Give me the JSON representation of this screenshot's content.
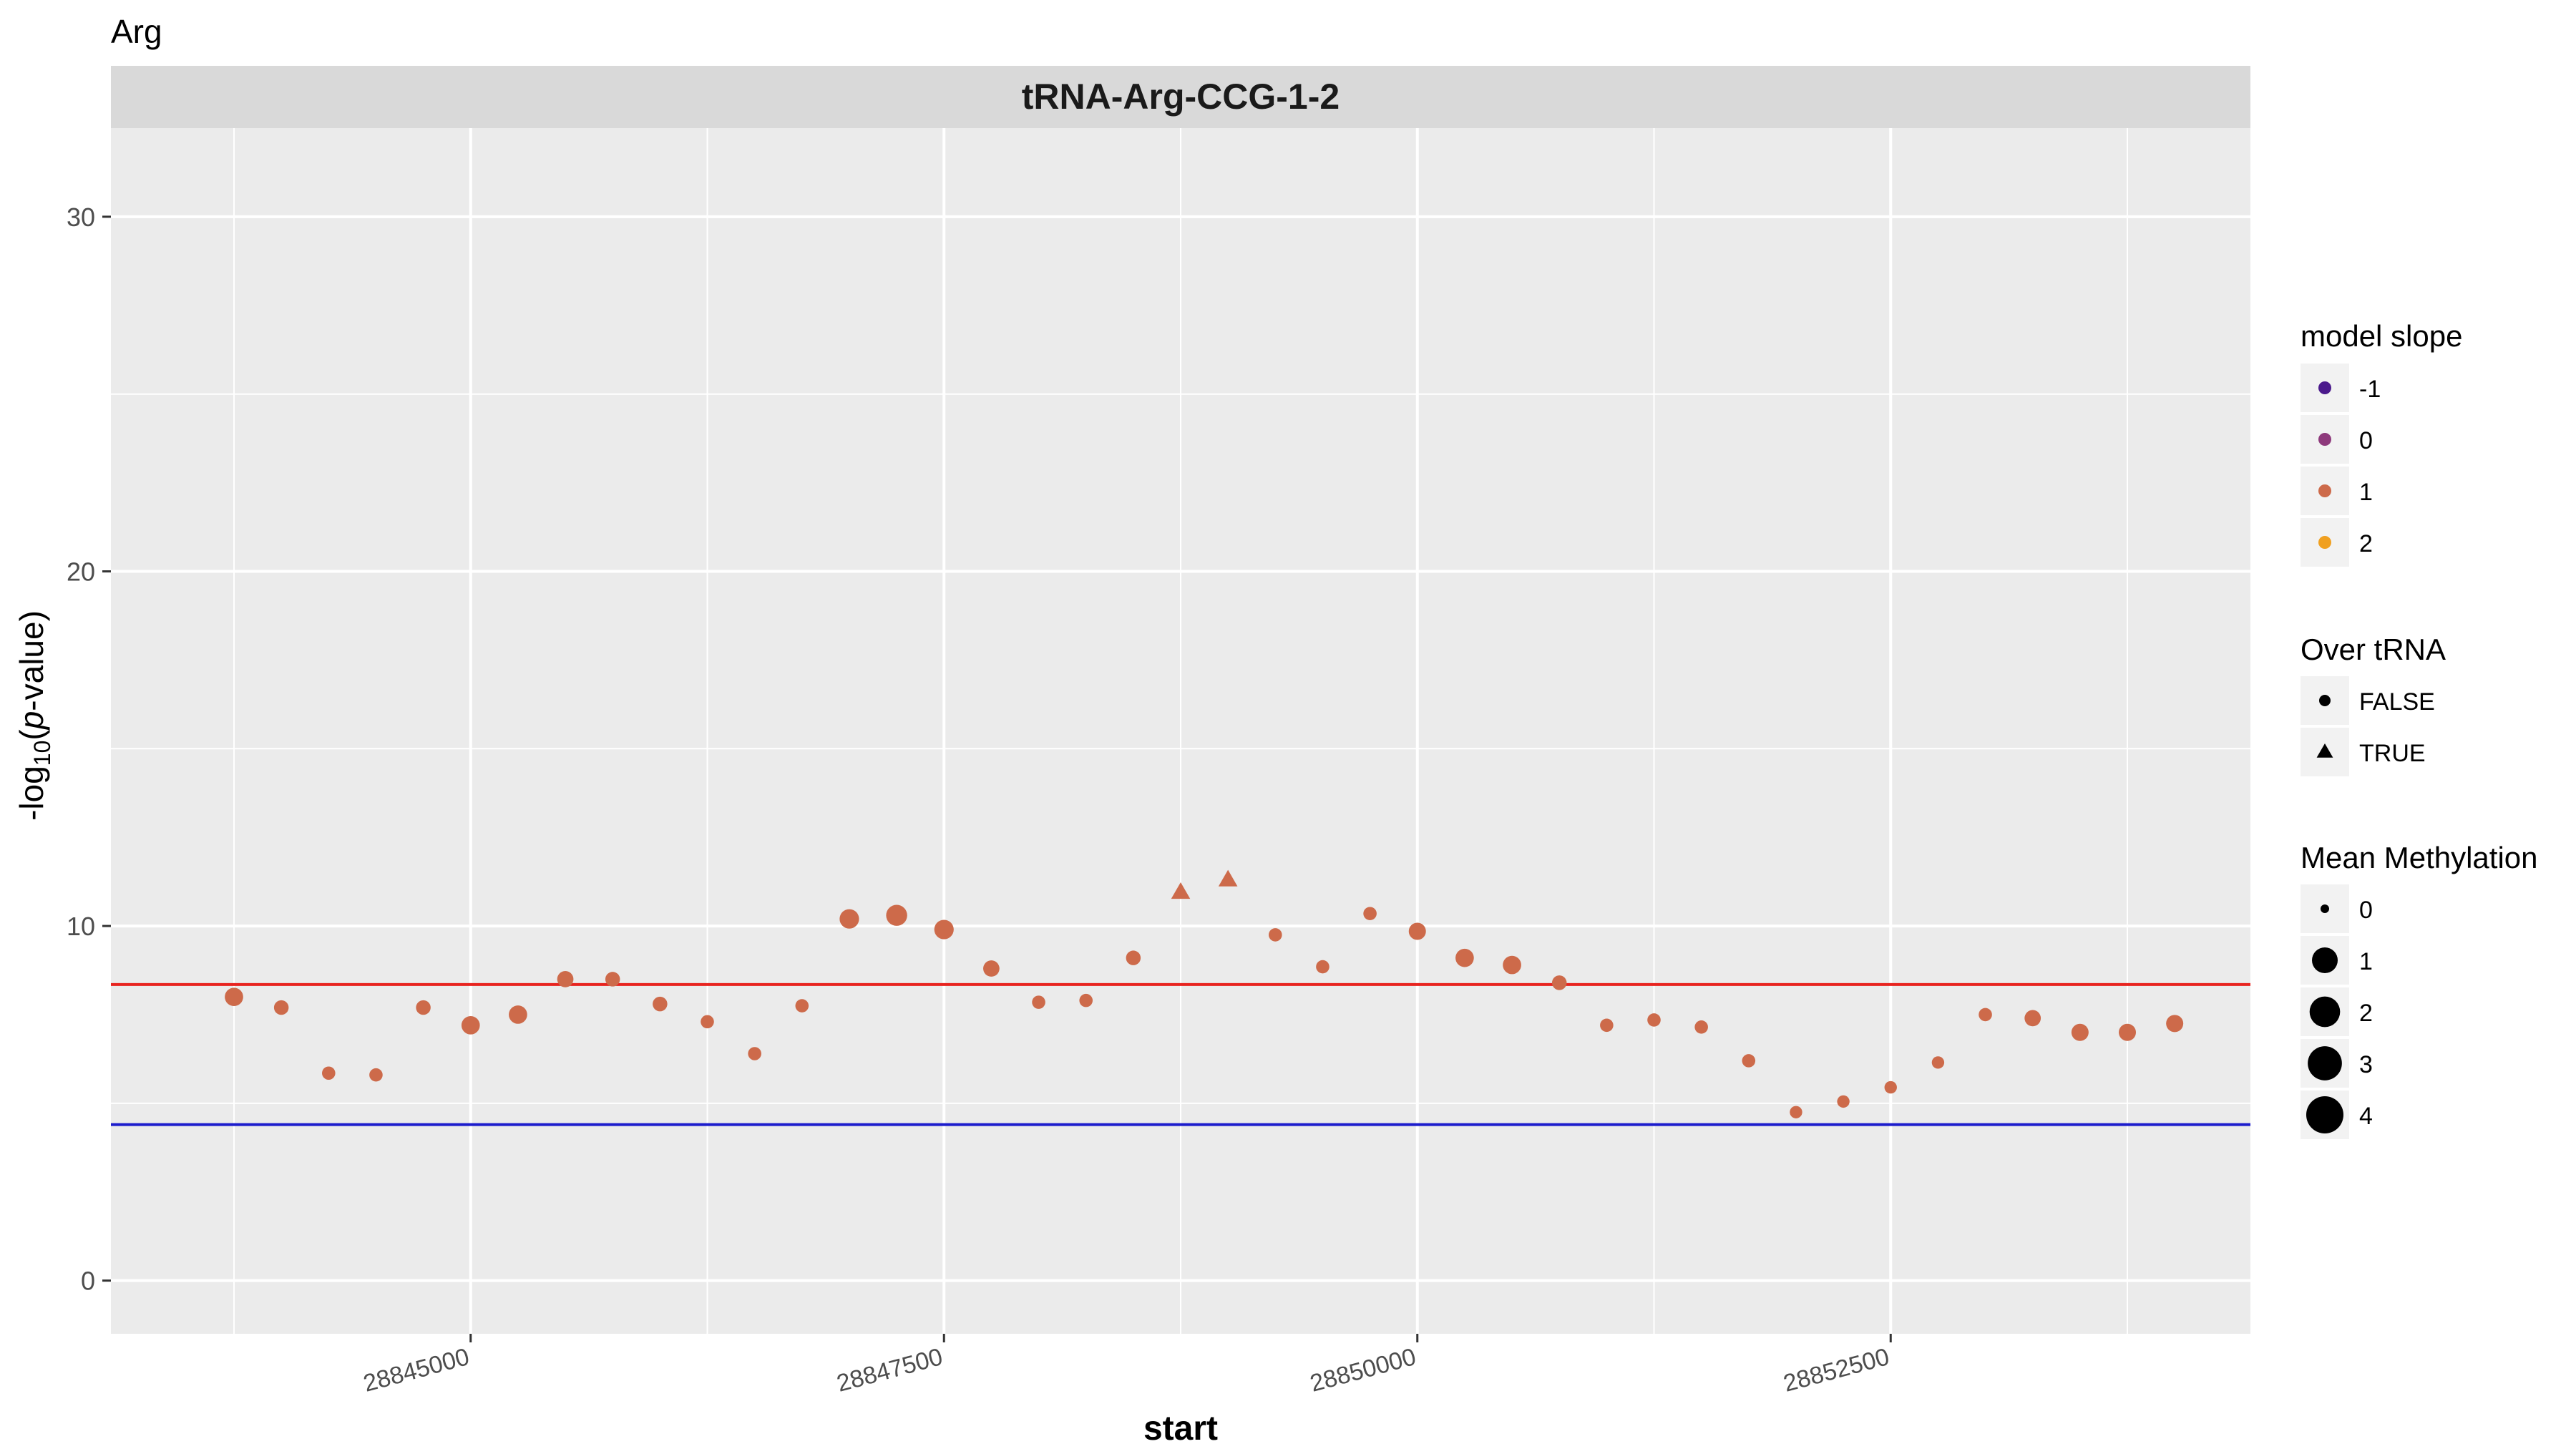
{
  "page_title": "Arg",
  "chart_data": {
    "type": "scatter",
    "facet_label": "tRNA-Arg-CCG-1-2",
    "xlabel": "start",
    "ylabel_prefix": "-log",
    "ylabel_sub": "10",
    "ylabel_open": "(",
    "ylabel_italic": "p",
    "ylabel_suffix": "-value)",
    "xlim": [
      28843100,
      28854400
    ],
    "ylim": [
      -1.5,
      32.5
    ],
    "x_ticks": [
      28845000,
      28847500,
      28850000,
      28852500
    ],
    "x_tick_labels": [
      "28845000",
      "28847500",
      "28850000",
      "28852500"
    ],
    "y_ticks": [
      0,
      10,
      20,
      30
    ],
    "y_tick_labels": [
      "0",
      "10",
      "20",
      "30"
    ],
    "hlines": [
      {
        "y": 8.35,
        "color": "#e8231f"
      },
      {
        "y": 4.4,
        "color": "#1c1ccc"
      }
    ],
    "grid": true,
    "panel_bg": "#ebebeb",
    "strip_bg": "#d9d9d9",
    "point_color": "#cd6a4a",
    "legend_position": "right",
    "points": [
      {
        "x": 28843750,
        "y": 8.0,
        "mm": 1.3,
        "over": false
      },
      {
        "x": 28844000,
        "y": 7.7,
        "mm": 0.5,
        "over": false
      },
      {
        "x": 28844250,
        "y": 5.85,
        "mm": 0.3,
        "over": false
      },
      {
        "x": 28844500,
        "y": 5.8,
        "mm": 0.3,
        "over": false
      },
      {
        "x": 28844750,
        "y": 7.7,
        "mm": 0.5,
        "over": false
      },
      {
        "x": 28845000,
        "y": 7.2,
        "mm": 1.3,
        "over": false
      },
      {
        "x": 28845250,
        "y": 7.5,
        "mm": 1.3,
        "over": false
      },
      {
        "x": 28845500,
        "y": 8.5,
        "mm": 0.8,
        "over": false
      },
      {
        "x": 28845750,
        "y": 8.5,
        "mm": 0.5,
        "over": false
      },
      {
        "x": 28846000,
        "y": 7.8,
        "mm": 0.5,
        "over": false
      },
      {
        "x": 28846250,
        "y": 7.3,
        "mm": 0.3,
        "over": false
      },
      {
        "x": 28846500,
        "y": 6.4,
        "mm": 0.3,
        "over": false
      },
      {
        "x": 28846750,
        "y": 7.75,
        "mm": 0.3,
        "over": false
      },
      {
        "x": 28847000,
        "y": 10.2,
        "mm": 1.6,
        "over": false
      },
      {
        "x": 28847250,
        "y": 10.3,
        "mm": 2.1,
        "over": false
      },
      {
        "x": 28847500,
        "y": 9.9,
        "mm": 1.6,
        "over": false
      },
      {
        "x": 28847750,
        "y": 8.8,
        "mm": 0.8,
        "over": false
      },
      {
        "x": 28848000,
        "y": 7.85,
        "mm": 0.3,
        "over": false
      },
      {
        "x": 28848250,
        "y": 7.9,
        "mm": 0.3,
        "over": false
      },
      {
        "x": 28848500,
        "y": 9.1,
        "mm": 0.5,
        "over": false
      },
      {
        "x": 28848750,
        "y": 10.95,
        "mm": 0.5,
        "over": true
      },
      {
        "x": 28849000,
        "y": 11.3,
        "mm": 0.5,
        "over": true
      },
      {
        "x": 28849250,
        "y": 9.75,
        "mm": 0.3,
        "over": false
      },
      {
        "x": 28849500,
        "y": 8.85,
        "mm": 0.3,
        "over": false
      },
      {
        "x": 28849750,
        "y": 10.35,
        "mm": 0.3,
        "over": false
      },
      {
        "x": 28850000,
        "y": 9.85,
        "mm": 1.0,
        "over": false
      },
      {
        "x": 28850250,
        "y": 9.1,
        "mm": 1.3,
        "over": false
      },
      {
        "x": 28850500,
        "y": 8.9,
        "mm": 1.3,
        "over": false
      },
      {
        "x": 28850750,
        "y": 8.4,
        "mm": 0.5,
        "over": false
      },
      {
        "x": 28851000,
        "y": 7.2,
        "mm": 0.3,
        "over": false
      },
      {
        "x": 28851250,
        "y": 7.35,
        "mm": 0.3,
        "over": false
      },
      {
        "x": 28851500,
        "y": 7.15,
        "mm": 0.3,
        "over": false
      },
      {
        "x": 28851750,
        "y": 6.2,
        "mm": 0.3,
        "over": false
      },
      {
        "x": 28852000,
        "y": 4.75,
        "mm": 0.2,
        "over": false
      },
      {
        "x": 28852250,
        "y": 5.05,
        "mm": 0.2,
        "over": false
      },
      {
        "x": 28852500,
        "y": 5.45,
        "mm": 0.2,
        "over": false
      },
      {
        "x": 28852750,
        "y": 6.15,
        "mm": 0.2,
        "over": false
      },
      {
        "x": 28853000,
        "y": 7.5,
        "mm": 0.3,
        "over": false
      },
      {
        "x": 28853250,
        "y": 7.4,
        "mm": 0.8,
        "over": false
      },
      {
        "x": 28853500,
        "y": 7.0,
        "mm": 1.0,
        "over": false
      },
      {
        "x": 28853750,
        "y": 7.0,
        "mm": 1.0,
        "over": false
      },
      {
        "x": 28854000,
        "y": 7.25,
        "mm": 1.0,
        "over": false
      }
    ]
  },
  "legend": {
    "slope": {
      "title": "model slope",
      "items": [
        {
          "label": "-1",
          "color": "#4b1a8c"
        },
        {
          "label": "0",
          "color": "#8e3a7c"
        },
        {
          "label": "1",
          "color": "#cd6a4a"
        },
        {
          "label": "2",
          "color": "#f0a020"
        }
      ]
    },
    "over": {
      "title": "Over tRNA",
      "items": [
        {
          "label": "FALSE",
          "shape": "circle"
        },
        {
          "label": "TRUE",
          "shape": "triangle"
        }
      ]
    },
    "meth": {
      "title": "Mean Methylation",
      "items": [
        {
          "label": "0",
          "value": 0
        },
        {
          "label": "1",
          "value": 1
        },
        {
          "label": "2",
          "value": 2
        },
        {
          "label": "3",
          "value": 3
        },
        {
          "label": "4",
          "value": 4
        }
      ]
    }
  }
}
